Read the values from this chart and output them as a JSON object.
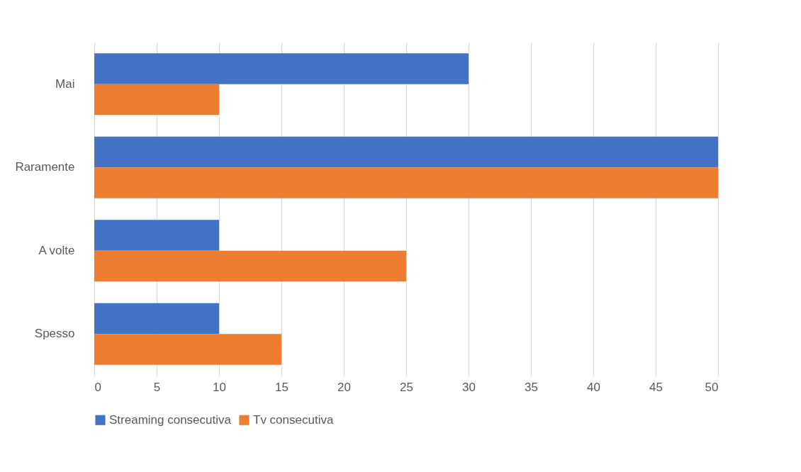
{
  "chart_data": {
    "type": "bar",
    "orientation": "horizontal",
    "categories": [
      "Mai",
      "Raramente",
      "A volte",
      "Spesso"
    ],
    "series": [
      {
        "name": "Streaming consecutiva",
        "color": "#4472c4",
        "values": [
          30,
          50,
          10,
          10
        ]
      },
      {
        "name": "Tv consecutiva",
        "color": "#ed7d31",
        "values": [
          10,
          50,
          25,
          15
        ]
      }
    ],
    "xlim": [
      0,
      50
    ],
    "xticks": [
      0,
      5,
      10,
      15,
      20,
      25,
      30,
      35,
      40,
      45,
      50
    ],
    "grid": "x",
    "legend": "bottom"
  }
}
